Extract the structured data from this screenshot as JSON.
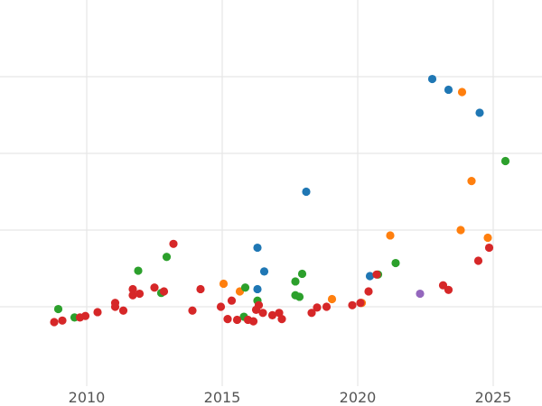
{
  "chart_data": {
    "type": "scatter",
    "title": "",
    "xlabel": "",
    "ylabel": "",
    "xlim": [
      2006.8,
      2026.8
    ],
    "ylim": [
      0,
      5.0
    ],
    "grid": true,
    "x_ticks": [
      2010,
      2015,
      2020,
      2025
    ],
    "x_tick_labels": [
      "2010",
      "2015",
      "2020",
      "2025"
    ],
    "y_gridlines": [
      1,
      2,
      3,
      4
    ],
    "series": [
      {
        "color": "#1f77b4",
        "points": [
          [
            2016.3,
            1.77
          ],
          [
            2016.55,
            1.46
          ],
          [
            2016.3,
            1.23
          ],
          [
            2018.1,
            2.5
          ],
          [
            2020.45,
            1.4
          ],
          [
            2022.75,
            3.97
          ],
          [
            2023.35,
            3.83
          ],
          [
            2024.5,
            3.53
          ]
        ]
      },
      {
        "color": "#ff7f0e",
        "points": [
          [
            2015.05,
            1.3
          ],
          [
            2015.65,
            1.2
          ],
          [
            2019.05,
            1.1
          ],
          [
            2020.15,
            1.05
          ],
          [
            2021.2,
            1.93
          ],
          [
            2023.8,
            2.0
          ],
          [
            2024.2,
            2.64
          ],
          [
            2024.8,
            1.9
          ],
          [
            2023.85,
            3.8
          ]
        ]
      },
      {
        "color": "#2ca02c",
        "points": [
          [
            2008.95,
            0.97
          ],
          [
            2009.55,
            0.86
          ],
          [
            2011.9,
            1.47
          ],
          [
            2012.95,
            1.65
          ],
          [
            2012.75,
            1.18
          ],
          [
            2015.85,
            1.25
          ],
          [
            2016.3,
            1.08
          ],
          [
            2015.8,
            0.87
          ],
          [
            2017.7,
            1.33
          ],
          [
            2017.7,
            1.15
          ],
          [
            2017.85,
            1.13
          ],
          [
            2017.95,
            1.43
          ],
          [
            2020.75,
            1.42
          ],
          [
            2021.4,
            1.57
          ],
          [
            2025.45,
            2.9
          ]
        ]
      },
      {
        "color": "#d62728",
        "points": [
          [
            2008.8,
            0.8
          ],
          [
            2009.1,
            0.82
          ],
          [
            2009.75,
            0.86
          ],
          [
            2009.95,
            0.88
          ],
          [
            2010.4,
            0.93
          ],
          [
            2011.05,
            1.05
          ],
          [
            2011.05,
            1.0
          ],
          [
            2011.35,
            0.95
          ],
          [
            2011.7,
            1.23
          ],
          [
            2011.7,
            1.15
          ],
          [
            2011.95,
            1.17
          ],
          [
            2012.5,
            1.25
          ],
          [
            2012.85,
            1.2
          ],
          [
            2013.2,
            1.82
          ],
          [
            2013.9,
            0.95
          ],
          [
            2014.2,
            1.23
          ],
          [
            2014.95,
            1.0
          ],
          [
            2015.2,
            0.84
          ],
          [
            2015.35,
            1.08
          ],
          [
            2015.55,
            0.83
          ],
          [
            2015.95,
            0.83
          ],
          [
            2016.15,
            0.81
          ],
          [
            2016.25,
            0.96
          ],
          [
            2016.35,
            1.02
          ],
          [
            2016.5,
            0.92
          ],
          [
            2016.85,
            0.89
          ],
          [
            2017.1,
            0.92
          ],
          [
            2017.2,
            0.84
          ],
          [
            2018.3,
            0.92
          ],
          [
            2018.5,
            0.99
          ],
          [
            2018.85,
            1.0
          ],
          [
            2019.8,
            1.02
          ],
          [
            2020.1,
            1.05
          ],
          [
            2020.4,
            1.2
          ],
          [
            2020.7,
            1.42
          ],
          [
            2023.15,
            1.28
          ],
          [
            2023.35,
            1.22
          ],
          [
            2024.45,
            1.6
          ],
          [
            2024.85,
            1.77
          ]
        ]
      },
      {
        "color": "#9467bd",
        "points": [
          [
            2022.3,
            1.17
          ]
        ]
      }
    ]
  }
}
